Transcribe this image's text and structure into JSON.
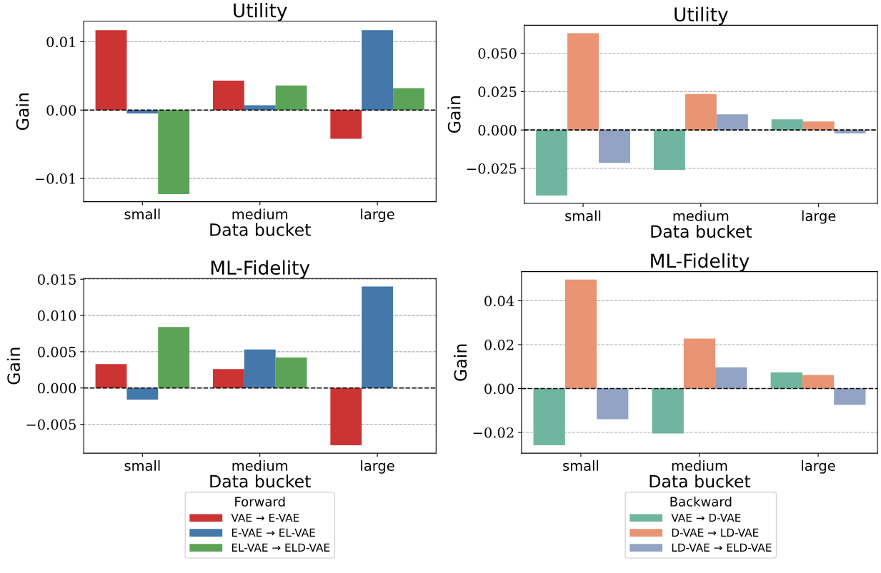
{
  "chart_data": [
    {
      "type": "bar",
      "title": "Utility",
      "xlabel": "Data bucket",
      "ylabel": "Gain",
      "categories": [
        "small",
        "medium",
        "large"
      ],
      "series": [
        {
          "name": "VAE → E-VAE",
          "color": "#cc3333",
          "values": [
            0.0117,
            0.0043,
            -0.0042
          ]
        },
        {
          "name": "E-VAE → EL-VAE",
          "color": "#4477aa",
          "values": [
            -0.0005,
            0.0007,
            0.0117
          ]
        },
        {
          "name": "EL-VAE → ELD-VAE",
          "color": "#5ba356",
          "values": [
            -0.0123,
            0.0036,
            0.0032
          ]
        }
      ],
      "ylim": [
        -0.0134,
        0.013
      ],
      "yticks": [
        {
          "value": -0.01,
          "label": "−0.01"
        },
        {
          "value": 0,
          "label": "0.00"
        },
        0.01
      ],
      "grid": "y",
      "legend": "bottom",
      "legend_title": "Forward",
      "ref_lines": [
        {
          "axis": "y",
          "value": 0,
          "color": "#000000",
          "line_style": "dashed"
        }
      ]
    },
    {
      "type": "bar",
      "title": "Utility",
      "xlabel": "Data bucket",
      "ylabel": "Gain",
      "categories": [
        "small",
        "medium",
        "large"
      ],
      "series": [
        {
          "name": "VAE → D-VAE",
          "color": "#6fb5a0",
          "values": [
            -0.0427,
            -0.0259,
            0.0069
          ]
        },
        {
          "name": "D-VAE → LD-VAE",
          "color": "#e99472",
          "values": [
            0.063,
            0.0234,
            0.0055
          ]
        },
        {
          "name": "LD-VAE → ELD-VAE",
          "color": "#93a3c4",
          "values": [
            -0.0214,
            0.0102,
            -0.0022
          ]
        }
      ],
      "ylim": [
        -0.0478,
        0.0682
      ],
      "yticks": [
        {
          "value": -0.025,
          "label": "−0.025"
        },
        {
          "value": 0,
          "label": "0.000"
        },
        0.025,
        {
          "value": 0.05,
          "label": "0.050"
        }
      ],
      "grid": "y",
      "legend": "bottom",
      "legend_title": "Backward",
      "ref_lines": [
        {
          "axis": "y",
          "value": 0,
          "color": "#000000",
          "line_style": "dashed"
        }
      ]
    },
    {
      "type": "bar",
      "title": "ML-Fidelity",
      "xlabel": "Data bucket",
      "ylabel": "Gain",
      "categories": [
        "small",
        "medium",
        "large"
      ],
      "series": [
        {
          "color": "#cc3333",
          "values": [
            0.0033,
            0.0026,
            -0.0079
          ]
        },
        {
          "color": "#4477aa",
          "values": [
            -0.0016,
            0.0053,
            0.014
          ]
        },
        {
          "color": "#5ba356",
          "values": [
            0.0084,
            0.0042,
            0
          ]
        }
      ],
      "ylim": [
        -0.009,
        0.0151
      ],
      "yticks": [
        {
          "value": -0.005,
          "label": "−0.005"
        },
        {
          "value": 0,
          "label": "0.000"
        },
        0.005,
        {
          "value": 0.01,
          "label": "0.010"
        },
        0.015
      ],
      "grid": "y",
      "ref_lines": [
        {
          "axis": "y",
          "value": 0,
          "color": "#000000",
          "line_style": "dashed"
        }
      ]
    },
    {
      "type": "bar",
      "title": "ML-Fidelity",
      "xlabel": "Data bucket",
      "ylabel": "Gain",
      "categories": [
        "small",
        "medium",
        "large"
      ],
      "series": [
        {
          "color": "#6fb5a0",
          "values": [
            -0.0259,
            -0.0205,
            0.0074
          ]
        },
        {
          "color": "#e99472",
          "values": [
            0.0497,
            0.0228,
            0.0062
          ]
        },
        {
          "color": "#93a3c4",
          "values": [
            -0.014,
            0.0097,
            -0.0074
          ]
        }
      ],
      "ylim": [
        -0.0295,
        0.0533
      ],
      "yticks": [
        {
          "value": -0.02,
          "label": "−0.02"
        },
        {
          "value": 0,
          "label": "0.00"
        },
        0.02,
        0.04
      ],
      "grid": "y",
      "ref_lines": [
        {
          "axis": "y",
          "value": 0,
          "color": "#000000",
          "line_style": "dashed"
        }
      ]
    }
  ]
}
